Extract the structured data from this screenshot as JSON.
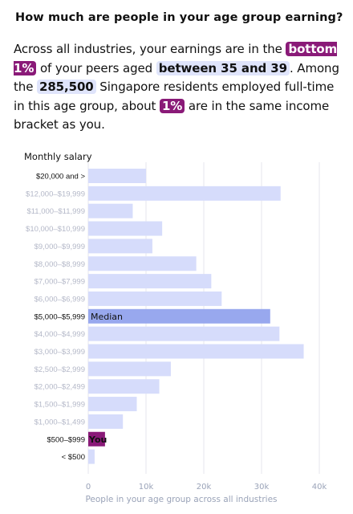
{
  "title": "How much are people in your age group earning?",
  "summary": {
    "p1": "Across all industries, your earnings are in the",
    "h1": "bottom 1%",
    "p2": "of your peers aged",
    "h2": "between 35 and 39",
    "p3": ". Among the",
    "h3": "285,500",
    "p4": "Singapore residents employed full-time in this age group, about",
    "h4": "1%",
    "p5": "are in the same income bracket as you."
  },
  "colors": {
    "bar": "#d6dcfb",
    "median_bar": "#98a8ee",
    "you_bar": "#8a1a78",
    "highlight_bg": "#dfe4fb",
    "grid": "#e4e6ec",
    "muted_label": "#b4b8c8"
  },
  "chart_data": {
    "type": "bar",
    "orientation": "horizontal",
    "ylabel": "Monthly salary",
    "xlabel": "People in your age group across all industries",
    "xlim": [
      0,
      40000
    ],
    "xticks": [
      0,
      10000,
      20000,
      30000,
      40000
    ],
    "xtick_labels": [
      "0",
      "10k",
      "20k",
      "30k",
      "40k"
    ],
    "grid": true,
    "categories": [
      "$20,000 and >",
      "$12,000–$19,999",
      "$11,000–$11,999",
      "$10,000–$10,999",
      "$9,000–$9,999",
      "$8,000–$8,999",
      "$7,000–$7,999",
      "$6,000–$6,999",
      "$5,000–$5,999",
      "$4,000–$4,999",
      "$3,000–$3,999",
      "$2,500–$2,999",
      "$2,000–$2,499",
      "$1,500–$1,999",
      "$1,000–$1,499",
      "$500–$999",
      "< $500"
    ],
    "values": [
      10000,
      33300,
      7700,
      12800,
      11100,
      18700,
      21300,
      23100,
      31500,
      33100,
      37300,
      14300,
      12300,
      8400,
      6000,
      2900,
      1100
    ],
    "highlighted": {
      "median": {
        "category": "$5,000–$5,999",
        "label": "Median"
      },
      "you": {
        "category": "$500–$999",
        "label": "You"
      }
    },
    "dark_labels": [
      "$20,000 and >",
      "$5,000–$5,999",
      "$500–$999",
      "< $500"
    ]
  }
}
